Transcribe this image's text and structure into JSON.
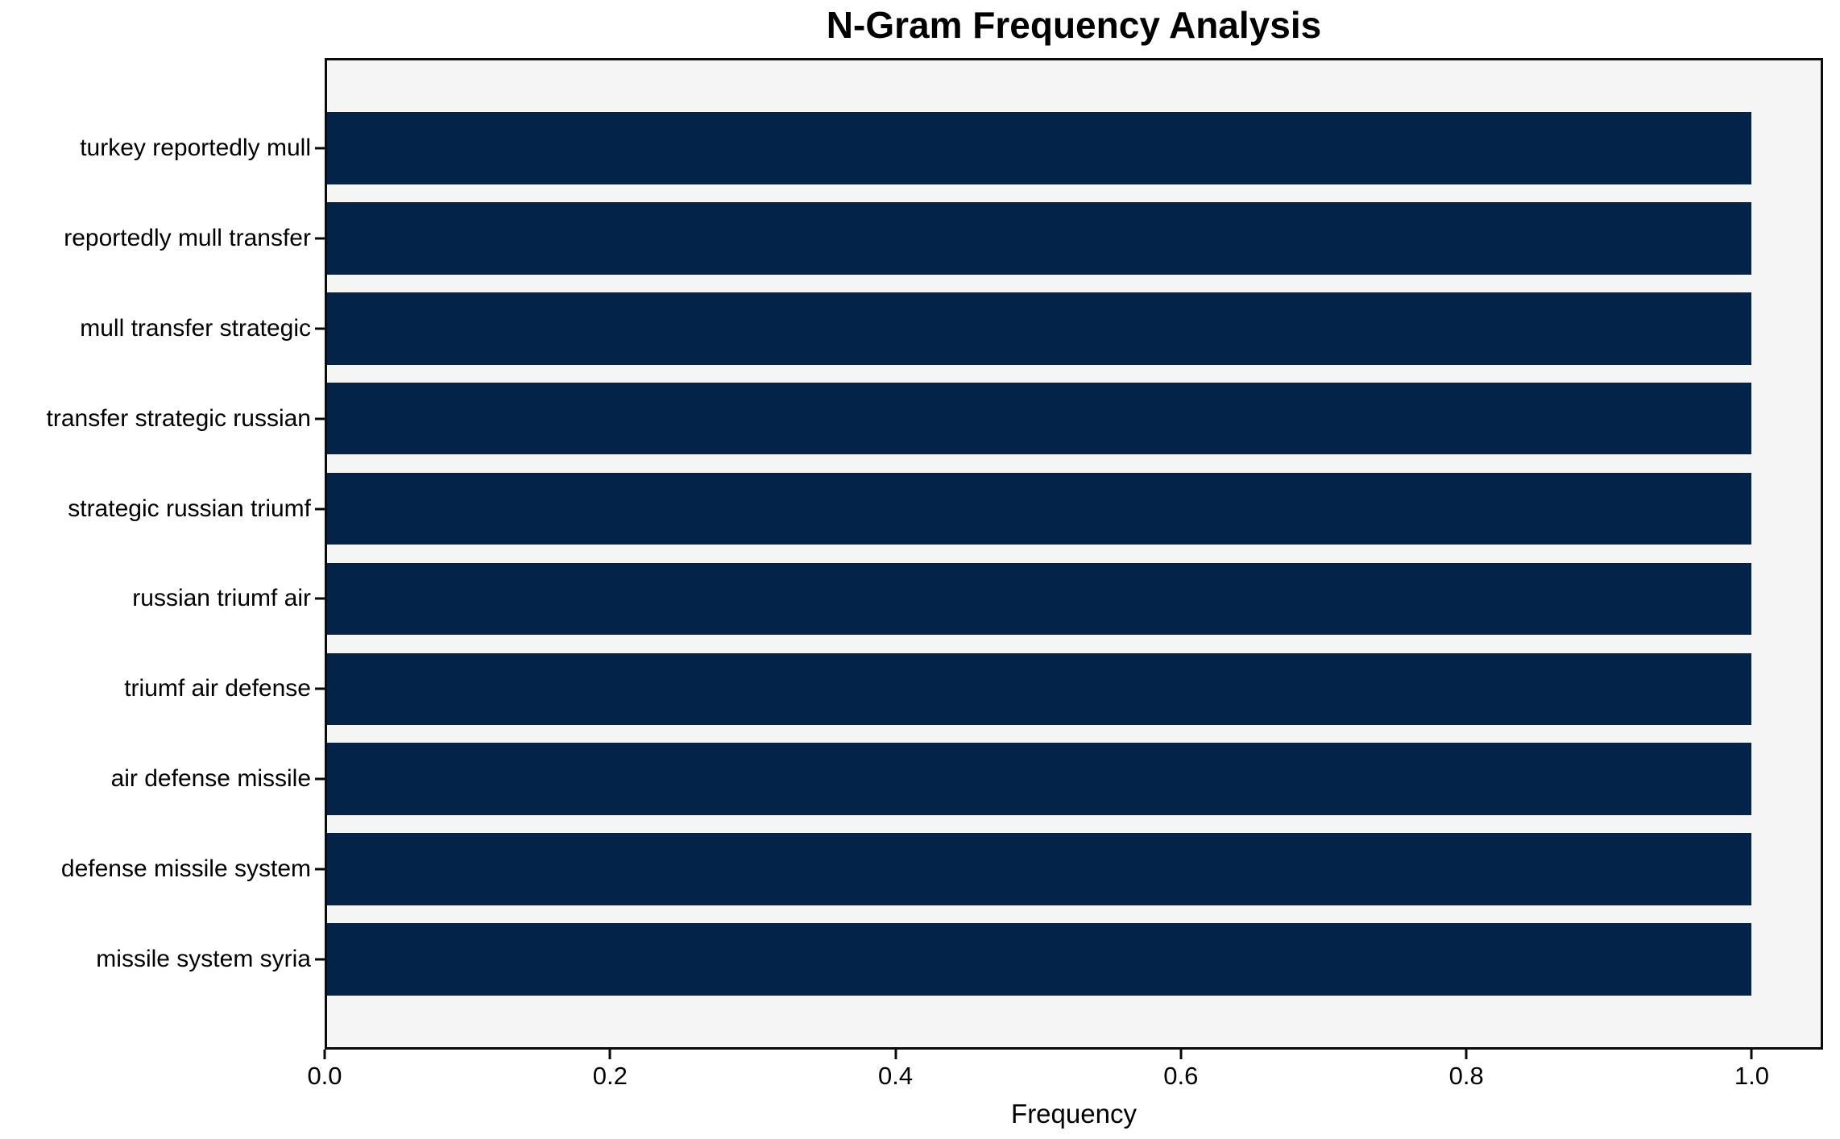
{
  "chart_data": {
    "type": "bar",
    "orientation": "horizontal",
    "title": "N-Gram Frequency Analysis",
    "xlabel": "Frequency",
    "ylabel": "",
    "categories": [
      "turkey reportedly mull",
      "reportedly mull transfer",
      "mull transfer strategic",
      "transfer strategic russian",
      "strategic russian triumf",
      "russian triumf air",
      "triumf air defense",
      "air defense missile",
      "defense missile system",
      "missile system syria"
    ],
    "values": [
      1.0,
      1.0,
      1.0,
      1.0,
      1.0,
      1.0,
      1.0,
      1.0,
      1.0,
      1.0
    ],
    "xlim": [
      0,
      1.05
    ],
    "xticks": [
      0.0,
      0.2,
      0.4,
      0.6,
      0.8,
      1.0
    ],
    "xtick_labels": [
      "0.0",
      "0.2",
      "0.4",
      "0.6",
      "0.8",
      "1.0"
    ],
    "grid": false,
    "legend": null,
    "bar_color": "#042349",
    "plot_bg_color": "#f5f5f5",
    "figure_bg_color": "#ffffff",
    "spine_color": "#0a0a0a"
  }
}
